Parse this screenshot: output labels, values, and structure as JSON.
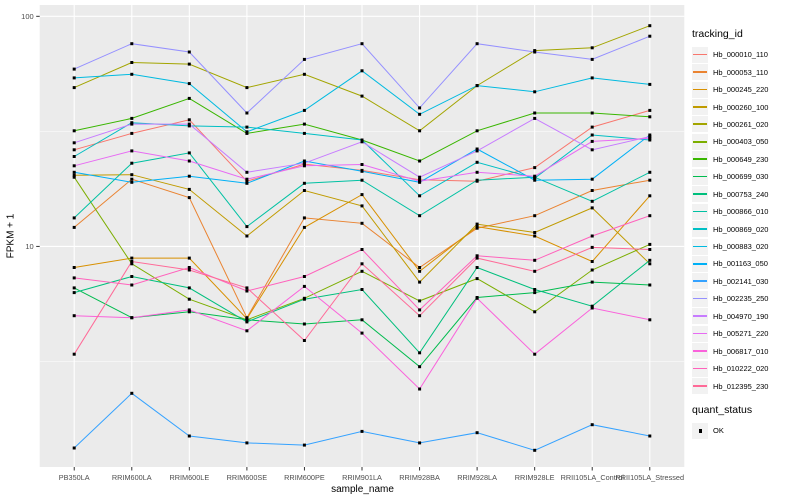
{
  "chart_data": {
    "type": "line",
    "title": "",
    "xlabel": "sample_name",
    "ylabel": "FPKM + 1",
    "x_categories": [
      "PB350LA",
      "RRIM600LA",
      "RRIM600LE",
      "RRIM600SE",
      "RRIM600PE",
      "RRIM901LA",
      "RRIM928BA",
      "RRIM928LA",
      "RRIM928LE",
      "RRII105LA_Control",
      "RRII105LA_Stressed"
    ],
    "y_scale": "log10",
    "ylim": [
      1.1,
      112
    ],
    "y_major_ticks": [
      10,
      100
    ],
    "y_tick_labels": [
      "10",
      "100"
    ],
    "y_minor_breaks": [
      3.162,
      31.62
    ],
    "grid": "on",
    "panel_bg": "#EBEBEB",
    "grid_color": "#FFFFFF",
    "tick_color": "#333333",
    "tick_text_color": "#4D4D4D",
    "point": {
      "shape": "square",
      "color": "#000000",
      "size": 3
    },
    "legend": {
      "title": "tracking_id",
      "position": "right"
    },
    "quant_legend": {
      "title": "quant_status",
      "items": [
        {
          "label": "OK",
          "marker": "black-square"
        }
      ]
    },
    "series": [
      {
        "name": "Hb_000010_110",
        "color": "#F8766D",
        "values": [
          26.3,
          31,
          35.5,
          19.2,
          22.8,
          21.4,
          19.5,
          19.2,
          22,
          33,
          39
        ]
      },
      {
        "name": "Hb_000053_110",
        "color": "#EA8331",
        "values": [
          12.1,
          19.6,
          16.3,
          4.9,
          13.3,
          12.6,
          8.1,
          12,
          13.6,
          17.5,
          19.4
        ]
      },
      {
        "name": "Hb_000245_220",
        "color": "#D89000",
        "values": [
          8.1,
          8.9,
          8.9,
          4.85,
          12.1,
          16.8,
          7.8,
          12.2,
          11.1,
          8.6,
          16.6
        ]
      },
      {
        "name": "Hb_000260_100",
        "color": "#C09B00",
        "values": [
          20.4,
          20.5,
          17.7,
          11.1,
          17.5,
          15,
          7,
          12.5,
          11.5,
          14.7,
          8.4
        ]
      },
      {
        "name": "Hb_000261_020",
        "color": "#A3A500",
        "values": [
          49,
          63,
          62,
          49,
          56,
          45,
          31.8,
          50,
          71,
          73,
          91
        ]
      },
      {
        "name": "Hb_000403_050",
        "color": "#7CAE00",
        "values": [
          20,
          8.4,
          5.9,
          4.8,
          5.95,
          7.8,
          5.8,
          7.25,
          5.2,
          7.9,
          10.2
        ]
      },
      {
        "name": "Hb_000649_230",
        "color": "#39B600",
        "values": [
          31.8,
          36,
          44,
          31,
          34,
          29,
          23.5,
          31.8,
          38,
          38,
          36.6
        ]
      },
      {
        "name": "Hb_000699_030",
        "color": "#00BB4E",
        "values": [
          6.6,
          4.9,
          5.2,
          4.8,
          4.6,
          4.8,
          3,
          6,
          6.3,
          7,
          6.8
        ]
      },
      {
        "name": "Hb_000753_240",
        "color": "#00BF7D",
        "values": [
          6.3,
          7.4,
          6.6,
          4.7,
          5.9,
          6.5,
          3.45,
          8.1,
          6.5,
          5.5,
          8.7
        ]
      },
      {
        "name": "Hb_000866_010",
        "color": "#00C1A3",
        "values": [
          13.3,
          23,
          25.5,
          12.2,
          18.8,
          19.4,
          13.6,
          19.4,
          20,
          15.7,
          21
        ]
      },
      {
        "name": "Hb_000869_020",
        "color": "#00BFC4",
        "values": [
          24.6,
          34.5,
          33.4,
          33,
          31,
          29,
          16.6,
          23.2,
          19.8,
          30.5,
          29
        ]
      },
      {
        "name": "Hb_000883_020",
        "color": "#00BAE0",
        "values": [
          54,
          56,
          51,
          31.5,
          39,
          58,
          37.5,
          50,
          47,
          54,
          50.6
        ]
      },
      {
        "name": "Hb_001163_050",
        "color": "#00B0F6",
        "values": [
          21,
          19,
          20.2,
          18.8,
          23.5,
          21.2,
          19,
          26.5,
          19.4,
          19.6,
          30.5
        ]
      },
      {
        "name": "Hb_002141_030",
        "color": "#35A2FF",
        "values": [
          1.33,
          2.3,
          1.5,
          1.4,
          1.37,
          1.57,
          1.4,
          1.55,
          1.3,
          1.68,
          1.5
        ]
      },
      {
        "name": "Hb_002235_250",
        "color": "#9590FF",
        "values": [
          59,
          76,
          70,
          38,
          65,
          76,
          40,
          76,
          70,
          65,
          82
        ]
      },
      {
        "name": "Hb_004970_190",
        "color": "#C77CFF",
        "values": [
          28.2,
          34,
          34,
          21,
          23,
          28.5,
          20,
          26,
          36,
          26.3,
          30
        ]
      },
      {
        "name": "Hb_005271_220",
        "color": "#E76BF3",
        "values": [
          22.4,
          26,
          23.5,
          19.6,
          22.4,
          22.7,
          19.2,
          21,
          20.2,
          28.6,
          29.5
        ]
      },
      {
        "name": "Hb_006817_010",
        "color": "#FA62DB",
        "values": [
          5,
          4.9,
          5.3,
          4.3,
          6.7,
          4.2,
          2.4,
          5.95,
          3.4,
          5.4,
          4.8
        ]
      },
      {
        "name": "Hb_010222_020",
        "color": "#FF62BC",
        "values": [
          7.3,
          6.8,
          8.1,
          6.4,
          7.4,
          9.7,
          5.3,
          9.1,
          8.7,
          11.1,
          13.6
        ]
      },
      {
        "name": "Hb_012395_230",
        "color": "#FF6A98",
        "values": [
          3.4,
          8.6,
          7.9,
          6.6,
          3.9,
          8.4,
          5,
          8.9,
          7.8,
          9.9,
          9.7
        ]
      }
    ]
  }
}
